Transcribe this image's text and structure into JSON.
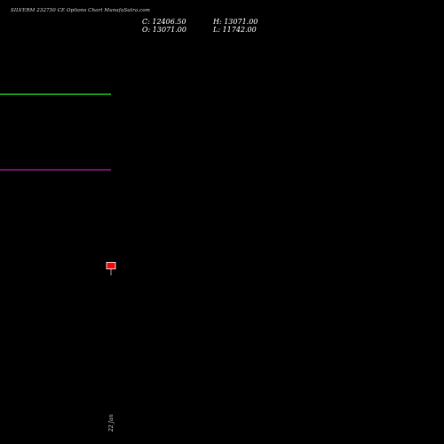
{
  "header": {
    "title": "SILVERM 232750 CE Options Chart MunafaSutra.com",
    "close": "C: 12406.50",
    "open": "O: 13071.00",
    "high": "H: 13071.00",
    "low": "L: 11742.00"
  },
  "chart_data": {
    "type": "candlestick",
    "title": "SILVERM 232750 CE Options Chart MunafaSutra.com",
    "x_labels": [
      "22 Jan"
    ],
    "candles": [
      {
        "x": "22 Jan",
        "open": 13071.0,
        "high": 13071.0,
        "low": 11742.0,
        "close": 12406.5
      }
    ],
    "reference_lines": [
      {
        "value": 30200,
        "color": "#22dd22"
      },
      {
        "value": 22500,
        "color": "#aa22aa"
      }
    ],
    "ylim": [
      0,
      36000
    ],
    "grid": false,
    "candle_color": "#ff0000",
    "background": "#000000"
  }
}
